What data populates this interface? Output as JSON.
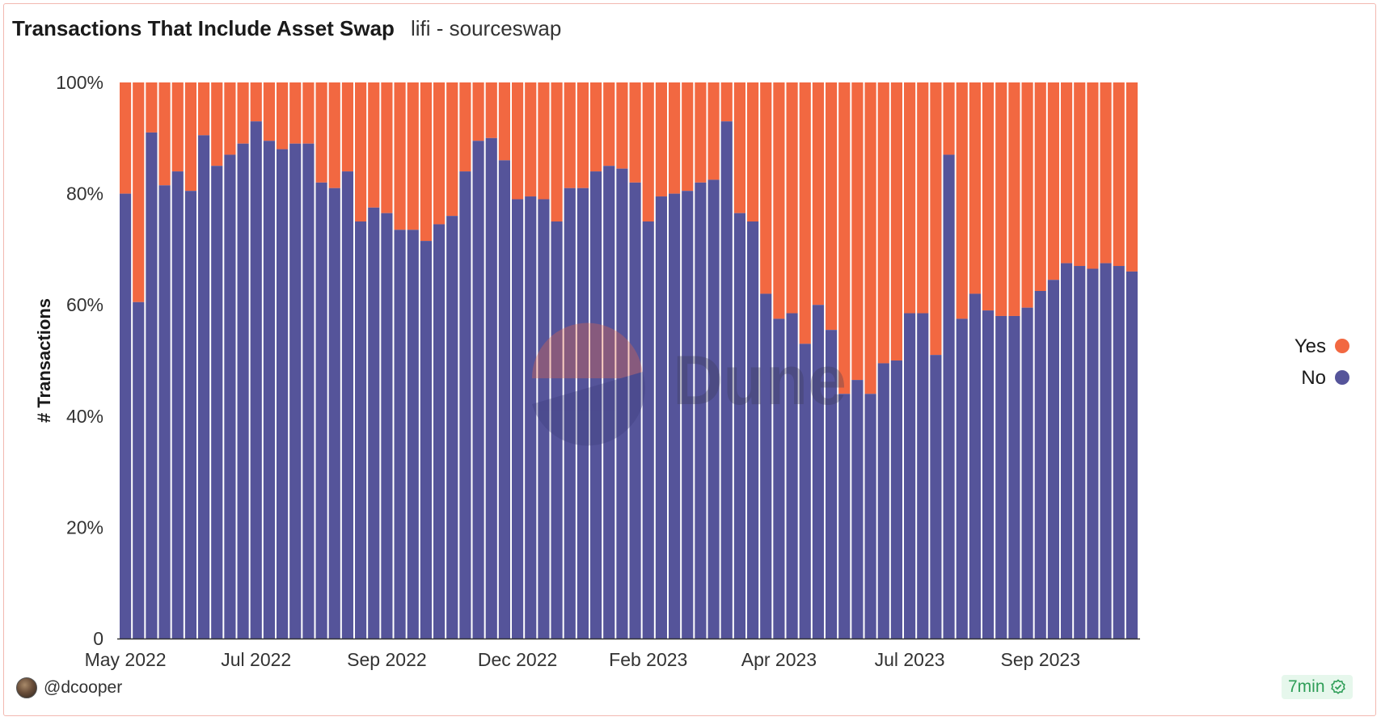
{
  "header": {
    "title": "Transactions That Include Asset Swap",
    "subtitle": "lifi - sourceswap"
  },
  "footer": {
    "author": "@dcooper",
    "refresh": "7min"
  },
  "watermark": "Dune",
  "chart_data": {
    "type": "bar",
    "stacked": true,
    "normalized": true,
    "title": "Transactions That Include Asset Swap",
    "ylabel": "# Transactions",
    "xlabel": "",
    "ylim": [
      0,
      100
    ],
    "yticks": [
      "0",
      "20%",
      "40%",
      "60%",
      "80%",
      "100%"
    ],
    "ytick_values": [
      0,
      20,
      40,
      60,
      80,
      100
    ],
    "xtick_labels": [
      {
        "label": "May 2022",
        "index": 0
      },
      {
        "label": "Jul 2022",
        "index": 10
      },
      {
        "label": "Sep 2022",
        "index": 20
      },
      {
        "label": "Dec 2022",
        "index": 30
      },
      {
        "label": "Feb 2023",
        "index": 40
      },
      {
        "label": "Apr 2023",
        "index": 50
      },
      {
        "label": "Jul 2023",
        "index": 60
      },
      {
        "label": "Sep 2023",
        "index": 70
      }
    ],
    "legend_position": "right",
    "series": [
      {
        "name": "Yes",
        "color": "#f26841"
      },
      {
        "name": "No",
        "color": "#55549a"
      }
    ],
    "no_values": [
      80,
      60.5,
      91,
      81.5,
      84,
      80.5,
      90.5,
      85,
      87,
      89,
      93,
      89.5,
      88,
      89,
      89,
      82,
      81,
      84,
      75,
      77.5,
      76.5,
      73.5,
      73.5,
      71.5,
      74.5,
      76,
      84,
      89.5,
      90,
      86,
      79,
      79.5,
      79,
      75,
      81,
      81,
      84,
      85,
      84.5,
      82,
      75,
      79.5,
      80,
      80.5,
      82,
      82.5,
      93,
      76.5,
      75,
      62,
      57.5,
      58.5,
      53,
      60,
      55.5,
      44,
      46.5,
      44,
      49.5,
      50,
      58.5,
      58.5,
      51,
      87,
      57.5,
      62,
      59,
      58,
      58,
      59.5,
      62.5,
      64.5,
      67.5,
      67,
      66.5,
      67.5,
      67,
      66
    ]
  }
}
